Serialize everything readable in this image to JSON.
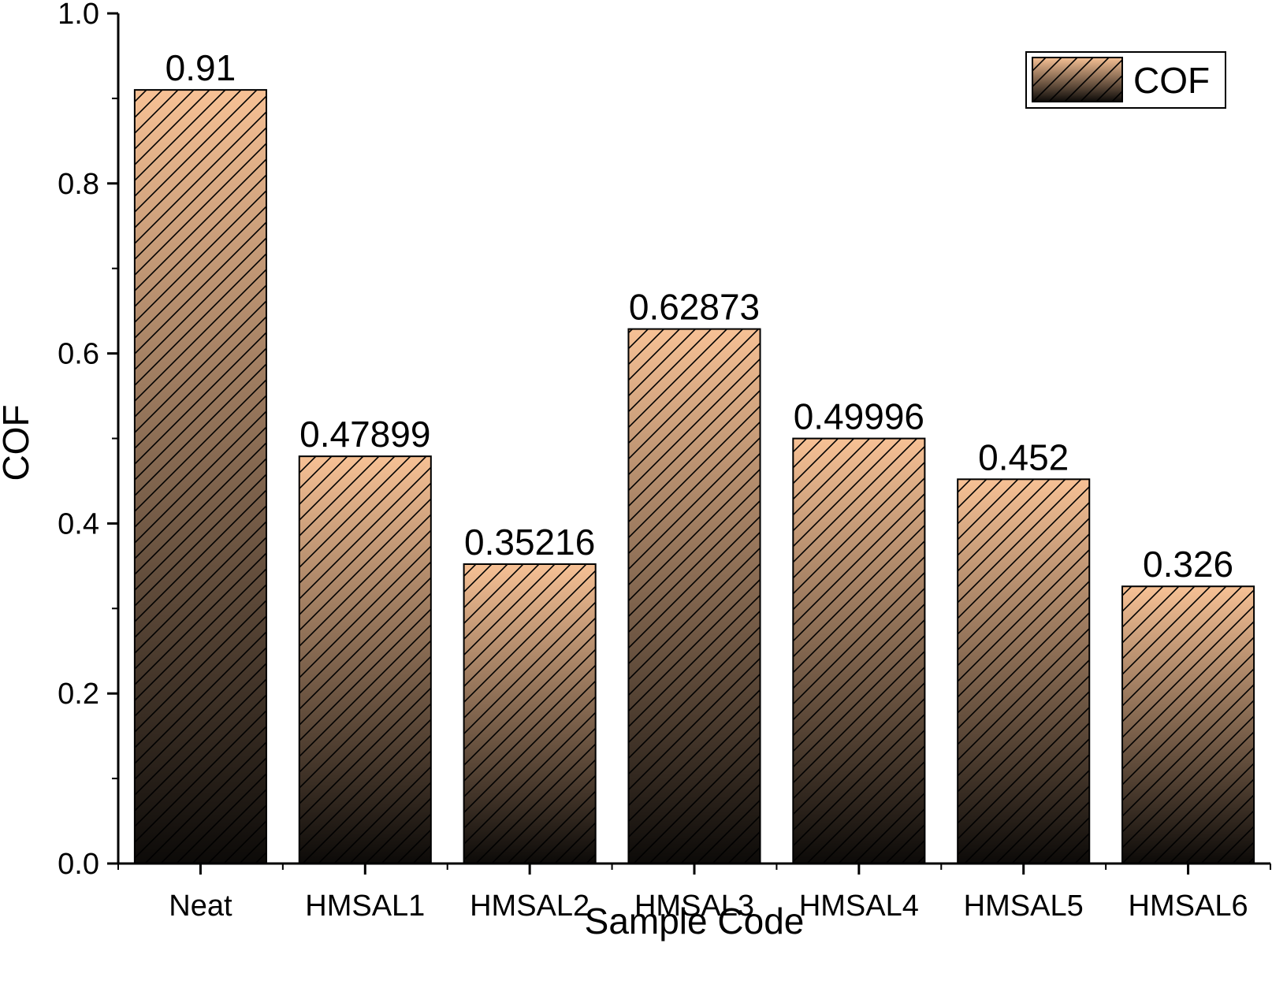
{
  "chart_data": {
    "type": "bar",
    "xlabel": "Sample Code",
    "ylabel": "COF",
    "categories": [
      "Neat",
      "HMSAL1",
      "HMSAL2",
      "HMSAL3",
      "HMSAL4",
      "HMSAL5",
      "HMSAL6"
    ],
    "series": [
      {
        "name": "COF",
        "values": [
          0.91,
          0.47899,
          0.35216,
          0.62873,
          0.49996,
          0.452,
          0.326
        ]
      }
    ],
    "value_labels": [
      "0.91",
      "0.47899",
      "0.35216",
      "0.62873",
      "0.49996",
      "0.452",
      "0.326"
    ],
    "ylim": [
      0,
      1.0
    ],
    "yticks": [
      "0.0",
      "0.2",
      "0.4",
      "0.6",
      "0.8",
      "1.0"
    ],
    "grid": false,
    "legend_position": "top-right",
    "bar_fill": "hatched gradient",
    "colors": {
      "bar_top": "#f7c195",
      "bar_bottom": "#0c0a08",
      "hatch": "#000000"
    }
  }
}
